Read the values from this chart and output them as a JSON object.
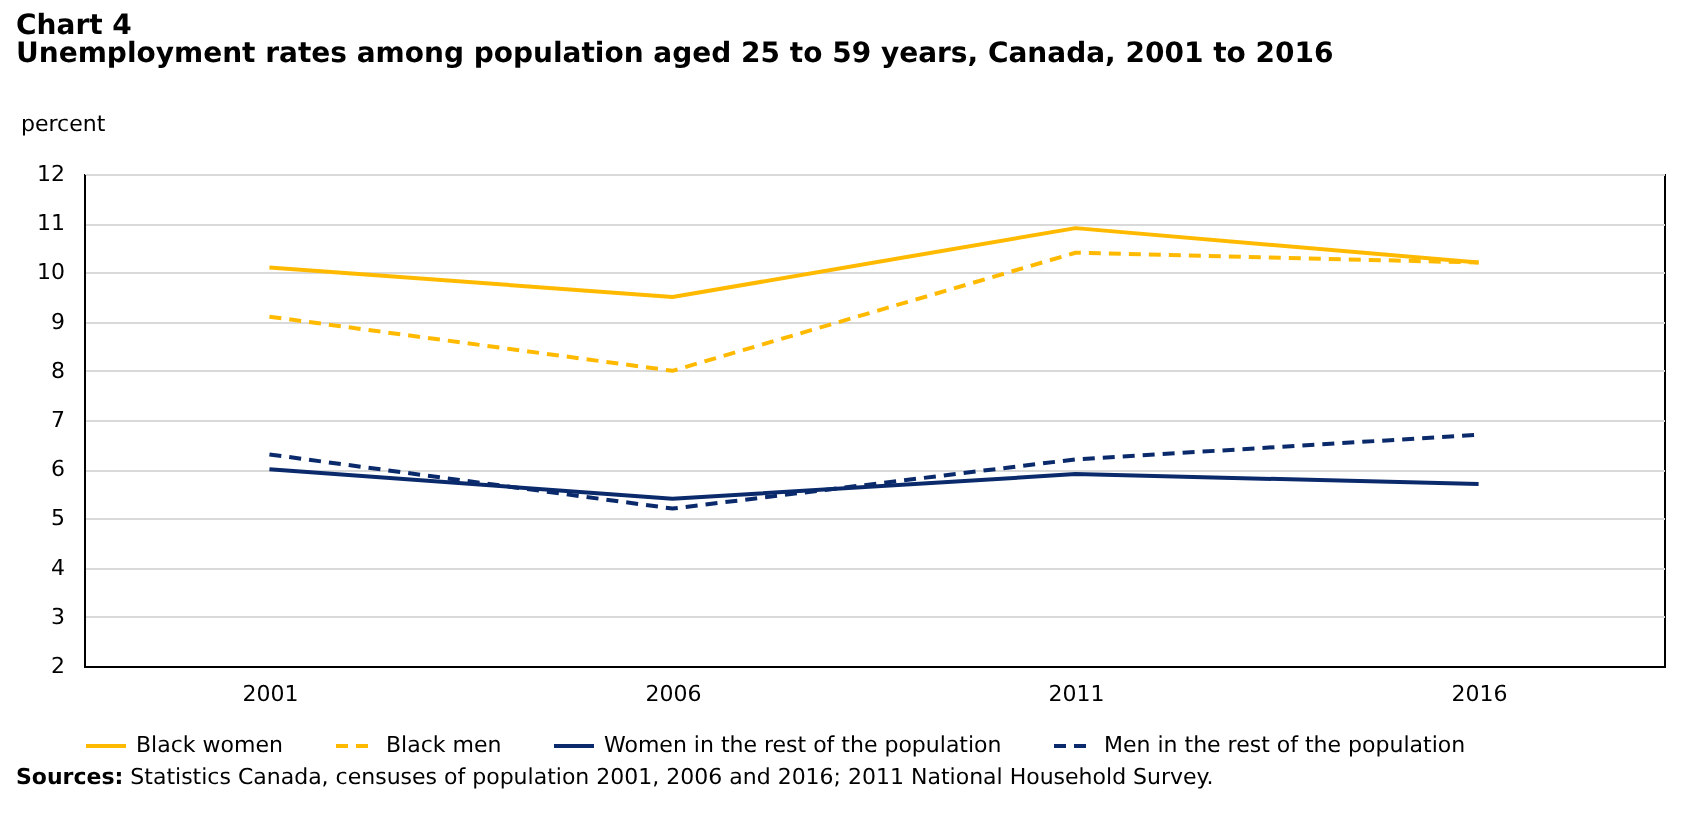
{
  "chart_data": {
    "type": "line",
    "title": "Chart 4",
    "subtitle": "Unemployment rates among population  aged 25 to 59 years, Canada, 2001 to 2016",
    "ylabel": "percent",
    "categories": [
      "2001",
      "2006",
      "2011",
      "2016"
    ],
    "series": [
      {
        "name": "Black women",
        "color": "#ffba00",
        "line_style": "solid",
        "values": [
          10.1,
          9.5,
          10.9,
          10.2
        ]
      },
      {
        "name": "Black men",
        "color": "#ffba00",
        "line_style": "dashed",
        "values": [
          9.1,
          8.0,
          10.4,
          10.2
        ]
      },
      {
        "name": "Women in the rest of the population",
        "color": "#0a2a6b",
        "line_style": "solid",
        "values": [
          6.0,
          5.4,
          5.9,
          5.7
        ]
      },
      {
        "name": "Men in the rest of the population",
        "color": "#0a2a6b",
        "line_style": "dashed",
        "values": [
          6.3,
          5.2,
          6.2,
          6.7
        ]
      }
    ],
    "ylim": [
      2,
      12
    ],
    "yticks": [
      2,
      3,
      4,
      5,
      6,
      7,
      8,
      9,
      10,
      11,
      12
    ],
    "grid": "y",
    "legend": "bottom",
    "marker": "none",
    "annotations": [
      "Sources: Statistics Canada, censuses of population 2001, 2006 and 2016; 2011 National Household Survey."
    ]
  }
}
